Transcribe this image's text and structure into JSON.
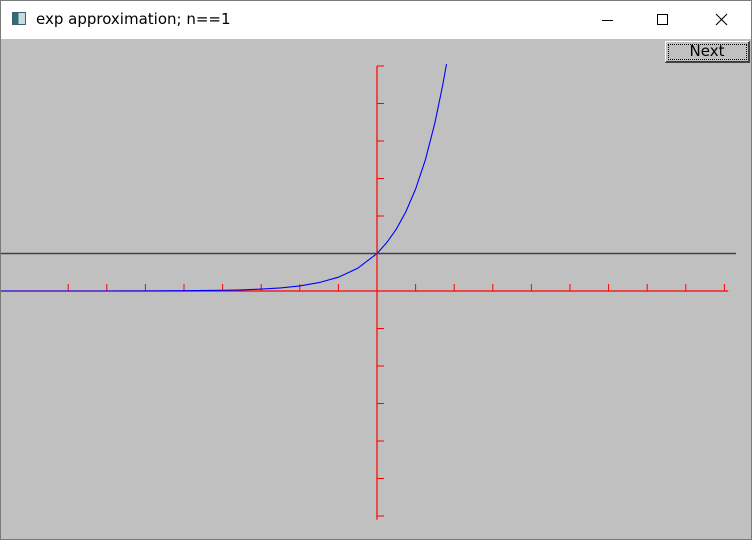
{
  "window": {
    "title": "exp approximation; n==1",
    "app_icon": "app-icon",
    "controls": [
      "minimize-icon",
      "maximize-icon",
      "close-icon"
    ]
  },
  "toolbar": {
    "next_label": "Next"
  },
  "colors": {
    "canvas_background": "#c0c0c0",
    "axes": "#ff0000",
    "approximation_line": "#404040",
    "exp_curve": "#0000ff"
  },
  "chart_data": {
    "type": "line",
    "title": "",
    "xlabel": "",
    "ylabel": "",
    "xlim": [
      -10,
      9
    ],
    "ylim": [
      -6,
      6
    ],
    "grid": false,
    "x_ticks": [
      -8,
      -7,
      -6,
      -5,
      -4,
      -3,
      -2,
      -1,
      0,
      1,
      2,
      3,
      4,
      5,
      6,
      7,
      8,
      9
    ],
    "y_ticks": [
      -6,
      -5,
      -4,
      -3,
      -2,
      -1,
      0,
      1,
      2,
      3,
      4,
      5,
      6
    ],
    "series": [
      {
        "function": "exp(x)",
        "color": "#0000ff",
        "x": [
          -10,
          -9,
          -8,
          -7,
          -6,
          -5,
          -4,
          -3.5,
          -3,
          -2.5,
          -2,
          -1.5,
          -1,
          -0.5,
          0,
          0.25,
          0.5,
          0.75,
          1,
          1.25,
          1.5,
          1.7,
          1.8
        ],
        "y": [
          4.54e-05,
          0.000123,
          0.000335,
          0.000912,
          0.00248,
          0.00674,
          0.0183,
          0.0302,
          0.0498,
          0.0821,
          0.1353,
          0.2231,
          0.3679,
          0.6065,
          1.0,
          1.284,
          1.6487,
          2.117,
          2.7183,
          3.49,
          4.4817,
          5.474,
          6.0496
        ]
      },
      {
        "function": "1",
        "color": "#404040",
        "x": [
          -10,
          9.3
        ],
        "y": [
          1,
          1
        ]
      }
    ]
  }
}
